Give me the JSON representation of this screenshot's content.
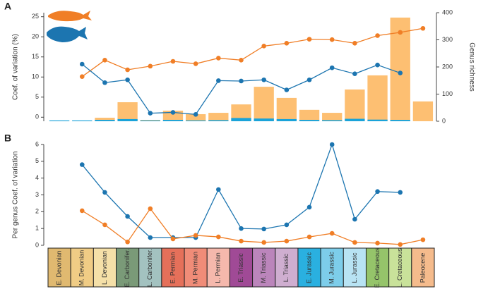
{
  "categories": [
    "E. Devonian",
    "M. Devonian",
    "L. Devonian",
    "E. Carbonifer.",
    "L. Carbonifer.",
    "E. Permian",
    "M. Permian",
    "L. Permian",
    "E. Triassic",
    "M. Triassic",
    "L. Triassic",
    "E. Jurassic",
    "M. Jurassic",
    "L. Jurassic",
    "E. Cretaceous",
    "L. Cretaceous",
    "Paleocene"
  ],
  "category_colors": [
    "#e0b970",
    "#f0cc85",
    "#f5e0a8",
    "#7a9a78",
    "#a3c2c0",
    "#e5705a",
    "#f08c78",
    "#f5b8ac",
    "#a04a96",
    "#bb85bb",
    "#cfaed0",
    "#2ab0e0",
    "#7dcdea",
    "#b8e3f3",
    "#95c46a",
    "#c9e29a",
    "#f5bb8c"
  ],
  "chart_data": [
    {
      "type": "bar_line",
      "panel": "A",
      "ylabel": "Coef. of variation (%)",
      "y2label": "Genus richness",
      "ylim": [
        -1,
        26
      ],
      "yticks": [
        0,
        5,
        10,
        15,
        20,
        25
      ],
      "y2lim": [
        0,
        400
      ],
      "y2ticks": [
        0,
        100,
        200,
        300,
        400
      ],
      "series": [
        {
          "type": "bar",
          "axis": "y2",
          "color": "#fdbf72",
          "values": [
            1,
            1,
            13,
            70,
            5,
            39,
            26,
            31,
            62,
            127,
            86,
            42,
            31,
            117,
            169,
            382,
            73
          ]
        },
        {
          "type": "bar",
          "axis": "y2",
          "color": "#1aa3d9",
          "values": [
            3,
            3,
            5,
            8,
            3,
            5,
            3,
            4,
            12,
            10,
            8,
            5,
            4,
            9,
            6,
            5,
            null
          ]
        },
        {
          "type": "line",
          "axis": "y",
          "color": "#f07e26",
          "values": [
            null,
            10.1,
            14.2,
            11.8,
            12.7,
            13.9,
            13.3,
            14.7,
            14.2,
            17.7,
            18.4,
            19.4,
            19.3,
            18.4,
            20.3,
            21.1,
            22.1
          ]
        },
        {
          "type": "line",
          "axis": "y",
          "color": "#1c75b0",
          "values": [
            null,
            13.2,
            8.6,
            9.3,
            1.0,
            1.2,
            0.7,
            9.1,
            9.0,
            9.3,
            6.8,
            9.3,
            12.3,
            10.8,
            13.0,
            11.0,
            null
          ]
        }
      ]
    },
    {
      "type": "line",
      "panel": "B",
      "ylabel": "Per genus Coef. of variation",
      "ylim": [
        0,
        6
      ],
      "yticks": [
        0,
        1,
        2,
        3,
        4,
        5,
        6
      ],
      "series": [
        {
          "type": "line",
          "axis": "y",
          "color": "#1c75b0",
          "values": [
            null,
            4.8,
            3.15,
            1.72,
            0.46,
            0.46,
            0.46,
            3.32,
            1.0,
            0.97,
            1.22,
            2.27,
            6.0,
            1.55,
            3.2,
            3.15,
            null
          ]
        },
        {
          "type": "line",
          "axis": "y",
          "color": "#f07e26",
          "values": [
            null,
            2.06,
            1.22,
            0.2,
            2.18,
            0.38,
            0.59,
            0.5,
            0.25,
            0.17,
            0.25,
            0.5,
            0.71,
            0.17,
            0.13,
            0.05,
            0.33
          ]
        }
      ]
    }
  ]
}
